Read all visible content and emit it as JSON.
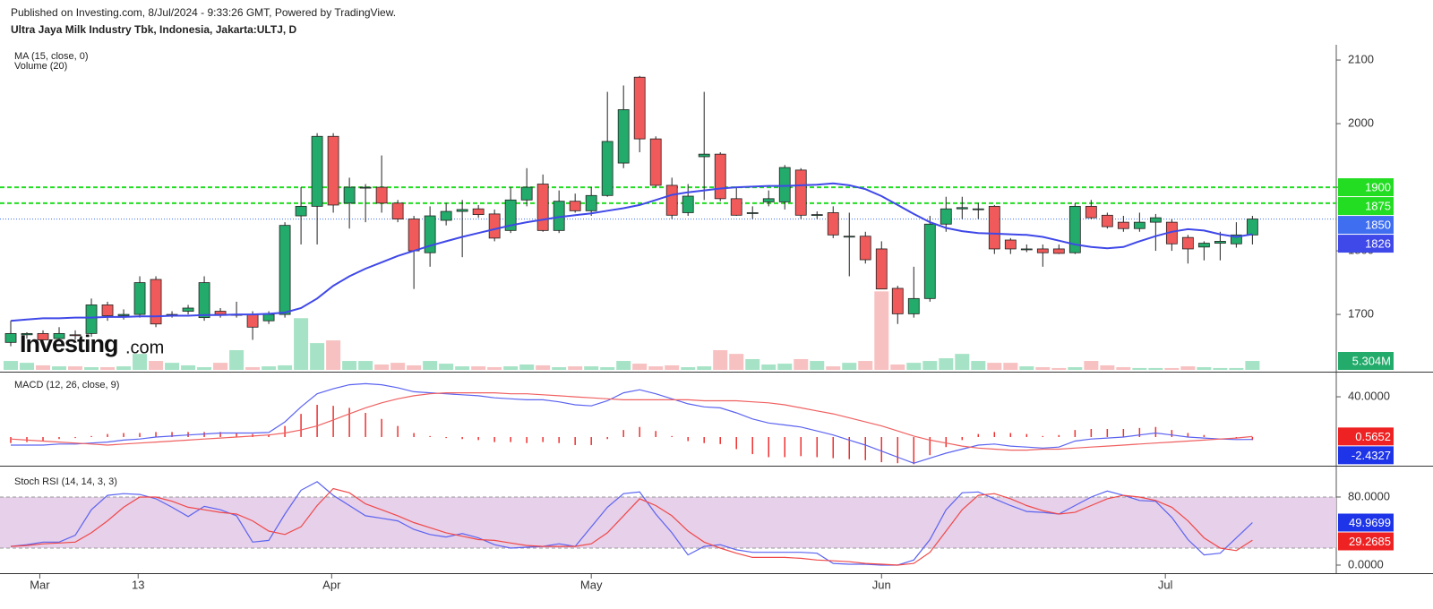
{
  "header": {
    "published": "Published on Investing.com, 8/Jul/2024 - 9:33:26 GMT, Powered by TradingView.",
    "symbol": "Ultra Jaya Milk Industry Tbk, Indonesia, Jakarta:ULTJ, D"
  },
  "logo": {
    "name": "Investing",
    "suffix": ".com"
  },
  "chart_data": [
    {
      "type": "candlestick",
      "up_color": "#22ab6a",
      "down_color": "#f05a5a",
      "xlim": [
        -0.667,
        82.2
      ],
      "xticks": [
        {
          "value": 1.8,
          "label": "Mar"
        },
        {
          "value": 7.9,
          "label": "13"
        },
        {
          "value": 19.9,
          "label": "Apr"
        },
        {
          "value": 36,
          "label": "May"
        },
        {
          "value": 54,
          "label": "Jun"
        },
        {
          "value": 71.6,
          "label": "Jul"
        }
      ],
      "ylim": [
        1610,
        2124
      ],
      "yticks": [
        1700,
        1800,
        1900,
        2000,
        2100
      ],
      "open": [
        1656,
        1668,
        1670,
        1662,
        1668,
        1670,
        1715,
        1698,
        1700,
        1755,
        1700,
        1705,
        1695,
        1705,
        1700,
        1700,
        1690,
        1700,
        1855,
        1870,
        1980,
        1875,
        1900,
        1900,
        1875,
        1850,
        1797,
        1848,
        1862,
        1866,
        1858,
        1832,
        1880,
        1905,
        1832,
        1878,
        1863,
        1887,
        1938,
        2073,
        1976,
        1903,
        1860,
        1948,
        1952,
        1882,
        1860,
        1877,
        1877,
        1927,
        1857,
        1860,
        1823,
        1823,
        1803,
        1741,
        1701,
        1725,
        1842,
        1866,
        1866,
        1870,
        1817,
        1803,
        1803,
        1803,
        1797,
        1870,
        1856,
        1845,
        1835,
        1845,
        1845,
        1821,
        1806,
        1812,
        1811,
        1825
      ],
      "high": [
        1690,
        1672,
        1675,
        1680,
        1675,
        1725,
        1720,
        1708,
        1760,
        1760,
        1705,
        1715,
        1760,
        1710,
        1720,
        1705,
        1705,
        1845,
        1900,
        1985,
        1985,
        1915,
        1905,
        1950,
        1880,
        1855,
        1870,
        1875,
        1880,
        1872,
        1865,
        1900,
        1930,
        1920,
        1895,
        1890,
        1900,
        2050,
        2060,
        2075,
        1980,
        1915,
        1905,
        2050,
        1955,
        1900,
        1870,
        1895,
        1935,
        1930,
        1862,
        1870,
        1860,
        1830,
        1815,
        1745,
        1775,
        1855,
        1885,
        1885,
        1875,
        1872,
        1820,
        1810,
        1810,
        1810,
        1875,
        1880,
        1860,
        1855,
        1860,
        1858,
        1850,
        1825,
        1815,
        1830,
        1845,
        1855
      ],
      "low": [
        1650,
        1662,
        1655,
        1658,
        1660,
        1665,
        1690,
        1692,
        1695,
        1680,
        1695,
        1700,
        1690,
        1695,
        1695,
        1660,
        1685,
        1695,
        1810,
        1810,
        1860,
        1835,
        1845,
        1860,
        1845,
        1740,
        1775,
        1840,
        1790,
        1852,
        1815,
        1828,
        1870,
        1830,
        1828,
        1860,
        1855,
        1885,
        1930,
        1955,
        1900,
        1850,
        1855,
        1880,
        1878,
        1855,
        1850,
        1870,
        1865,
        1850,
        1850,
        1820,
        1760,
        1780,
        1740,
        1685,
        1695,
        1720,
        1830,
        1850,
        1850,
        1795,
        1795,
        1798,
        1775,
        1795,
        1795,
        1850,
        1835,
        1830,
        1830,
        1800,
        1800,
        1780,
        1785,
        1785,
        1805,
        1810
      ],
      "close": [
        1670,
        1670,
        1660,
        1670,
        1667,
        1715,
        1698,
        1700,
        1750,
        1685,
        1700,
        1710,
        1750,
        1700,
        1700,
        1680,
        1700,
        1840,
        1870,
        1980,
        1872,
        1900,
        1900,
        1875,
        1850,
        1800,
        1855,
        1862,
        1865,
        1857,
        1820,
        1880,
        1900,
        1832,
        1878,
        1863,
        1887,
        1972,
        2022,
        1976,
        1903,
        1856,
        1886,
        1952,
        1882,
        1856,
        1860,
        1882,
        1931,
        1856,
        1857,
        1825,
        1823,
        1786,
        1740,
        1701,
        1725,
        1842,
        1866,
        1868,
        1866,
        1803,
        1803,
        1803,
        1797,
        1796,
        1870,
        1852,
        1838,
        1835,
        1845,
        1852,
        1811,
        1803,
        1812,
        1815,
        1825,
        1850
      ],
      "series": [
        {
          "name": "MA (15, close, 0)",
          "color": "#3f48e8",
          "values": [
            1690,
            1692,
            1694,
            1694,
            1695,
            1695,
            1696,
            1696,
            1697,
            1697,
            1698,
            1698,
            1699,
            1699,
            1700,
            1700,
            1701,
            1703,
            1710,
            1725,
            1745,
            1760,
            1772,
            1782,
            1792,
            1800,
            1808,
            1815,
            1822,
            1828,
            1834,
            1840,
            1845,
            1849,
            1853,
            1856,
            1859,
            1863,
            1867,
            1872,
            1880,
            1888,
            1892,
            1895,
            1898,
            1900,
            1901,
            1902,
            1902,
            1903,
            1904,
            1906,
            1903,
            1897,
            1886,
            1872,
            1858,
            1845,
            1836,
            1831,
            1828,
            1827,
            1826,
            1825,
            1822,
            1816,
            1810,
            1806,
            1804,
            1806,
            1815,
            1823,
            1830,
            1834,
            1832,
            1826,
            1822,
            1826
          ]
        }
      ],
      "volume": {
        "name": "Volume (20)",
        "up_color": "#a6e3c6",
        "down_color": "#f7c1c1",
        "ylim": [
          0,
          193
        ],
        "last_label": "5.304M",
        "label_color": "#22ab6a",
        "values": [
          5.3,
          4.2,
          2.7,
          2.1,
          2.1,
          1.6,
          1.6,
          2.1,
          9.5,
          5.3,
          4.2,
          2.7,
          1.6,
          4.2,
          11.7,
          1.6,
          2.1,
          2.7,
          30.7,
          15.9,
          17.5,
          5.3,
          5.3,
          3.2,
          4.2,
          2.7,
          5.3,
          3.7,
          2.1,
          2.1,
          1.6,
          2.1,
          3.2,
          2.7,
          1.6,
          2.1,
          2.1,
          1.6,
          5.3,
          3.7,
          2.1,
          2.7,
          1.6,
          2.1,
          11.7,
          9.5,
          6.4,
          3.2,
          3.7,
          6.4,
          5.3,
          2.1,
          4.2,
          5.3,
          46.6,
          3.2,
          4.2,
          5.3,
          6.9,
          9.5,
          5.3,
          4.2,
          4.2,
          2.1,
          1.6,
          1.1,
          1.6,
          5.3,
          2.7,
          1.6,
          1.1,
          1.1,
          1.1,
          2.1,
          1.6,
          1.1,
          1.1,
          5.304
        ]
      },
      "levels": [
        {
          "value": 1900,
          "color": "#22dd22"
        },
        {
          "value": 1875,
          "color": "#22dd22"
        }
      ],
      "last_price_color": "#3f6ff0"
    },
    {
      "type": "macd",
      "title": "MACD (12, 26, close, 9)",
      "ylim": [
        -28.5,
        62.3
      ],
      "yticks": [
        {
          "value": 40,
          "label": "40.0000"
        }
      ],
      "series": [
        {
          "color": "#5b63f0",
          "box_color": "#1e34e8",
          "values": [
            -8,
            -8,
            -8,
            -7,
            -7,
            -6,
            -5,
            -3,
            -2,
            0,
            1,
            2,
            3,
            4,
            4,
            4,
            4.5,
            15,
            30,
            43,
            48,
            52,
            53,
            52,
            49,
            45,
            44,
            43,
            42,
            41,
            39,
            38,
            37,
            37,
            35,
            32,
            31,
            36,
            44,
            47,
            43,
            38,
            33,
            30,
            29,
            24,
            18,
            14,
            12,
            10,
            6,
            2,
            -3,
            -8,
            -14,
            -20,
            -26,
            -21,
            -16,
            -12,
            -8,
            -7,
            -9,
            -10,
            -11,
            -10,
            -4,
            -2,
            -1,
            0,
            2,
            4,
            2,
            0,
            -1,
            -2,
            -2.5,
            -2.4327
          ]
        },
        {
          "color": "#f06060",
          "box_color": "#ee2222",
          "values": [
            -2,
            -3,
            -4,
            -5,
            -6,
            -7,
            -8,
            -7,
            -6,
            -5,
            -4,
            -3,
            -2,
            -1,
            0,
            1,
            2,
            4,
            7,
            11,
            17,
            23,
            29,
            34,
            38,
            41,
            43,
            44,
            44,
            44,
            44,
            43,
            43,
            42,
            41,
            40,
            39,
            38,
            37,
            37,
            37,
            37,
            37,
            36,
            36,
            36,
            35,
            34,
            32,
            29,
            26,
            23,
            19,
            15,
            11,
            6,
            1,
            -3,
            -6,
            -9,
            -11,
            -12,
            -13,
            -13,
            -12,
            -12,
            -11,
            -10,
            -9,
            -8,
            -7,
            -6,
            -5,
            -4,
            -3,
            -2,
            -1,
            0.5652
          ]
        },
        {
          "kind": "histogram",
          "color": "#ee3030",
          "values": [
            -6,
            -5,
            -4,
            -2,
            -1,
            1,
            3,
            4,
            4,
            5,
            5,
            5,
            5,
            5,
            4,
            3,
            2.5,
            11,
            23,
            32,
            31,
            29,
            24,
            18,
            11,
            4,
            1,
            -1,
            -2,
            -3,
            -5,
            -5,
            -6,
            -5,
            -6,
            -8,
            -8,
            -2,
            7,
            10,
            6,
            1,
            -4,
            -6,
            -7,
            -12,
            -17,
            -20,
            -20,
            -19,
            -20,
            -21,
            -22,
            -23,
            -25,
            -26,
            -27,
            -18,
            -10,
            -3,
            3,
            5,
            4,
            3,
            1,
            2,
            7,
            8,
            8,
            8,
            9,
            10,
            7,
            4,
            2,
            0,
            -1.5,
            -3
          ]
        }
      ]
    },
    {
      "type": "stoch_rsi",
      "title": "Stoch RSI (14, 14, 3, 3)",
      "ylim": [
        -9.5,
        112.6
      ],
      "band": [
        20,
        80
      ],
      "band_color": "#e3cbe8",
      "yticks": [
        {
          "value": 0,
          "label": "0.0000"
        },
        {
          "value": 80,
          "label": "80.0000"
        }
      ],
      "series": [
        {
          "color": "#5b63f0",
          "box_color": "#1e34e8",
          "values": [
            22,
            24,
            27,
            27,
            35,
            65,
            82,
            84,
            83,
            78,
            68,
            57,
            69,
            65,
            58,
            27,
            29,
            60,
            88,
            98,
            82,
            70,
            58,
            55,
            52,
            42,
            36,
            33,
            37,
            32,
            24,
            20,
            21,
            22,
            25,
            22,
            45,
            68,
            84,
            86,
            60,
            38,
            12,
            22,
            24,
            18,
            15,
            15,
            15,
            15,
            14,
            2,
            1,
            1,
            0,
            0,
            6,
            30,
            65,
            85,
            86,
            78,
            70,
            63,
            62,
            60,
            70,
            80,
            87,
            82,
            76,
            75,
            56,
            30,
            12,
            14,
            32,
            49.9699
          ]
        },
        {
          "color": "#f04848",
          "box_color": "#ee2222",
          "values": [
            22,
            23,
            25,
            26,
            27,
            38,
            52,
            68,
            80,
            80,
            75,
            68,
            65,
            62,
            60,
            52,
            40,
            36,
            45,
            70,
            90,
            85,
            72,
            65,
            58,
            50,
            44,
            38,
            34,
            30,
            29,
            26,
            23,
            22,
            22,
            22,
            25,
            38,
            58,
            78,
            70,
            58,
            40,
            27,
            20,
            14,
            9,
            9,
            9,
            8,
            6,
            5,
            4,
            2,
            1,
            0,
            2,
            15,
            40,
            65,
            82,
            84,
            78,
            70,
            64,
            60,
            62,
            70,
            78,
            82,
            80,
            76,
            68,
            52,
            32,
            20,
            17,
            29.2685
          ]
        }
      ]
    }
  ]
}
